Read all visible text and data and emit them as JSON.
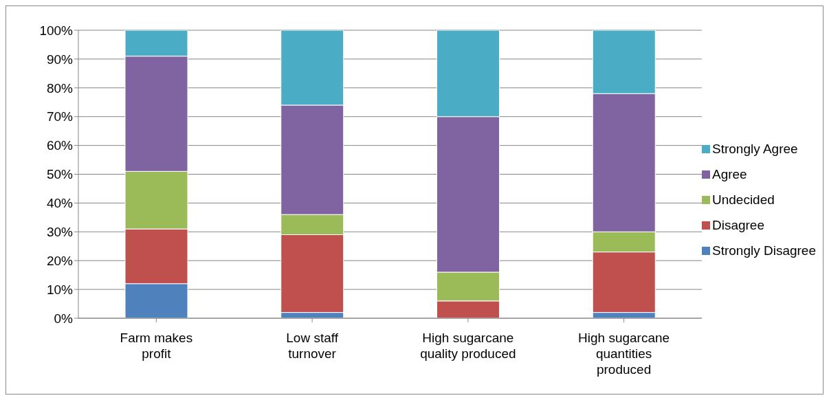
{
  "chart_data": {
    "type": "bar",
    "stacked": true,
    "categories": [
      "Farm makes profit",
      "Low staff turnover",
      "High sugarcane quality produced",
      "High sugarcane quantities produced"
    ],
    "series": [
      {
        "name": "Strongly Disagree",
        "color": "#4f81bd",
        "values": [
          12,
          2,
          0,
          2
        ]
      },
      {
        "name": "Disagree",
        "color": "#c0504d",
        "values": [
          19,
          27,
          6,
          21
        ]
      },
      {
        "name": "Undecided",
        "color": "#9bbb59",
        "values": [
          20,
          7,
          10,
          7
        ]
      },
      {
        "name": "Agree",
        "color": "#8064a2",
        "values": [
          40,
          38,
          54,
          48
        ]
      },
      {
        "name": "Strongly Agree",
        "color": "#4bacc6",
        "values": [
          9,
          26,
          30,
          22
        ]
      }
    ],
    "ylim": [
      0,
      100
    ],
    "yticks": [
      {
        "value": 0,
        "label": "0%"
      },
      {
        "value": 10,
        "label": "10%"
      },
      {
        "value": 20,
        "label": "20%"
      },
      {
        "value": 30,
        "label": "30%"
      },
      {
        "value": 40,
        "label": "40%"
      },
      {
        "value": 50,
        "label": "50%"
      },
      {
        "value": 60,
        "label": "60%"
      },
      {
        "value": 70,
        "label": "70%"
      },
      {
        "value": 80,
        "label": "80%"
      },
      {
        "value": 90,
        "label": "90%"
      },
      {
        "value": 100,
        "label": "100%"
      }
    ],
    "grid": "y",
    "legend": "right",
    "marker": "square"
  }
}
